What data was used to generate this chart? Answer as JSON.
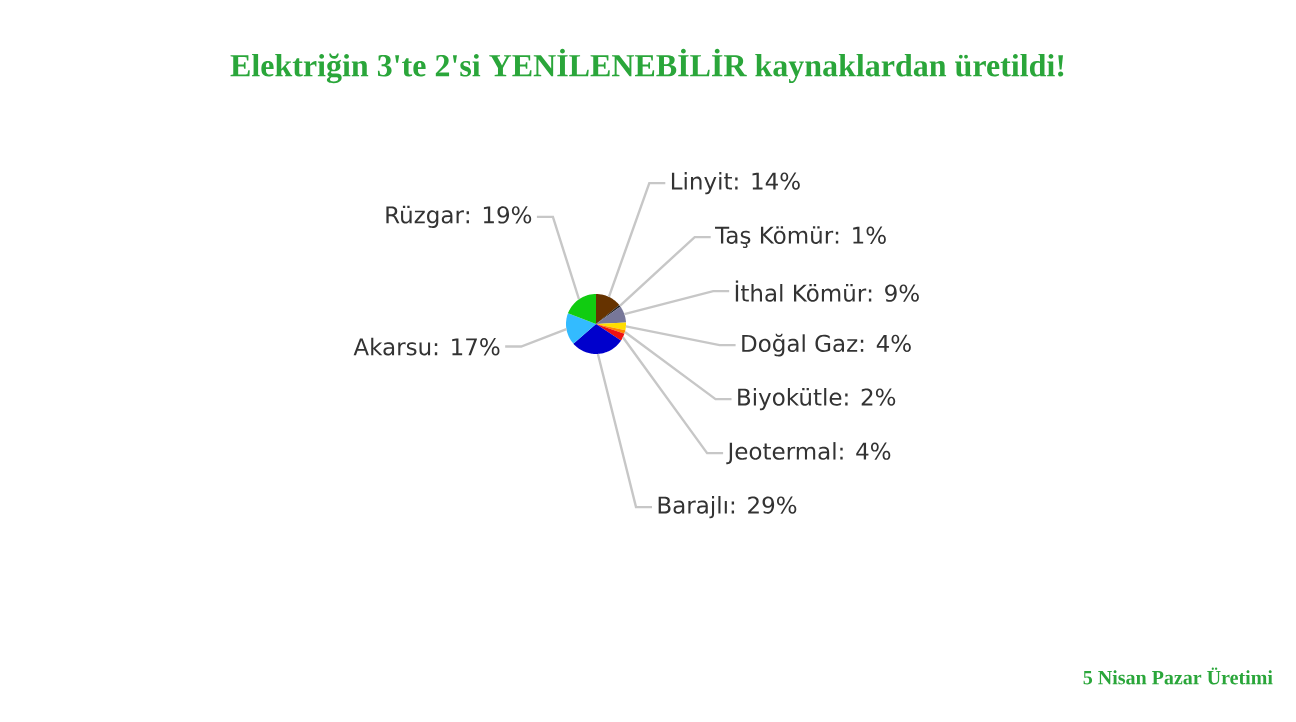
{
  "chart_data": {
    "type": "pie",
    "title": "Elektriğin 3'te 2'si YENİLENEBİLİR kaynaklardan üretildi!",
    "categories": [
      "Linyit",
      "Taş Kömür",
      "İthal Kömür",
      "Doğal Gaz",
      "Biyokütle",
      "Jeotermal",
      "Barajlı",
      "Akarsu",
      "Rüzgar"
    ],
    "values": [
      14,
      1,
      9,
      4,
      2,
      4,
      29,
      17,
      19
    ],
    "value_labels": [
      ": 14%",
      ": 1%",
      ": 9%",
      ": 4%",
      ": 2%",
      ": 4%",
      ": 29%",
      ": 17%",
      ": 19%"
    ],
    "colors": [
      "#663300",
      "#222222",
      "#777799",
      "#ffdd00",
      "#ff8800",
      "#ee1111",
      "#0000cc",
      "#33bbff",
      "#11cc11"
    ],
    "annotations": [
      "5 Nisan Pazar Üretimi"
    ]
  }
}
